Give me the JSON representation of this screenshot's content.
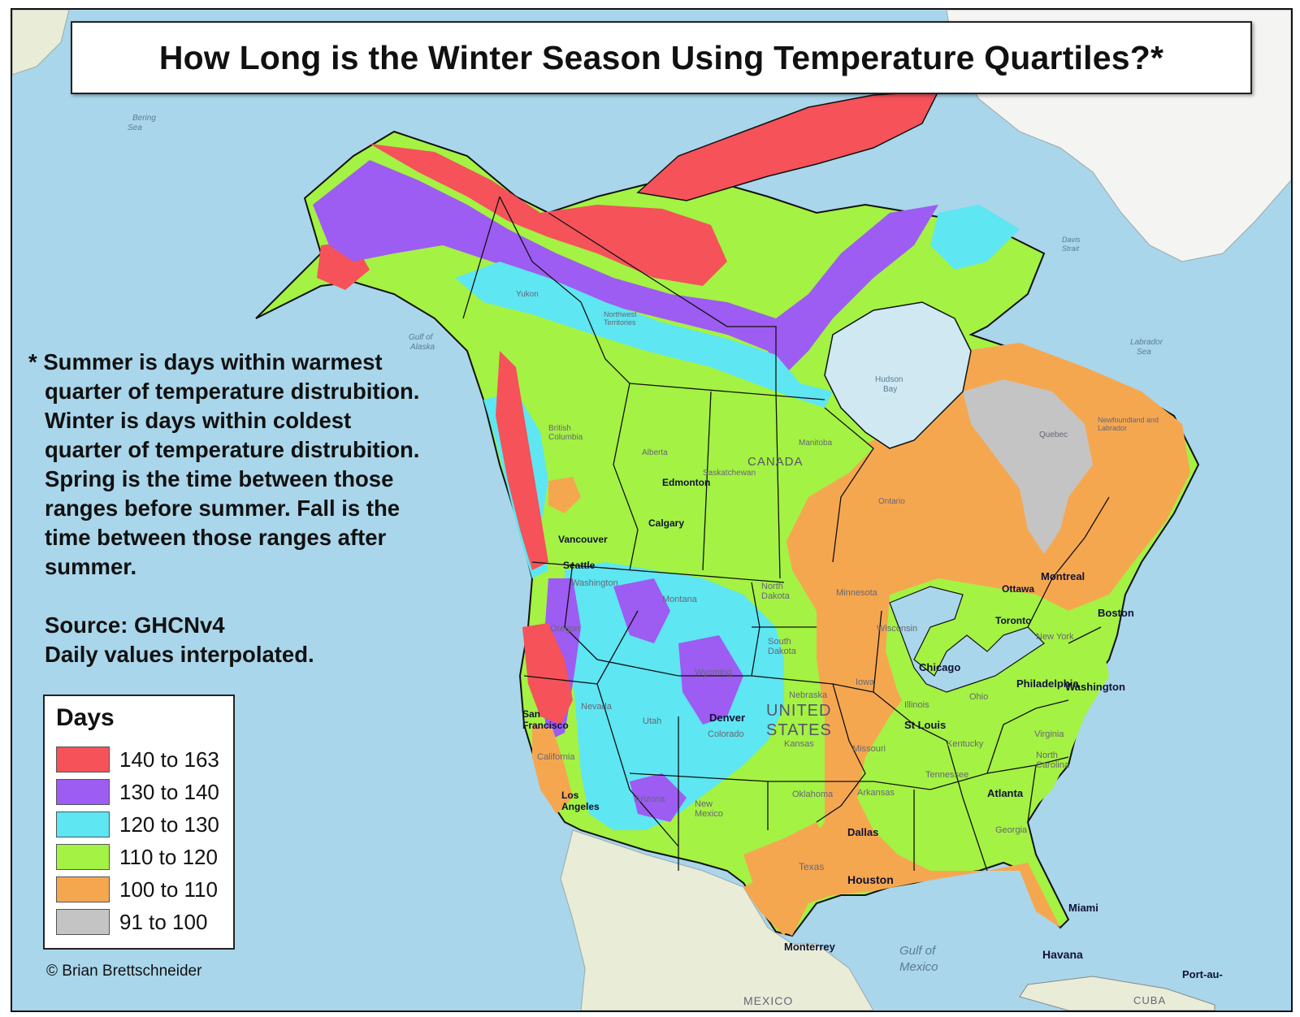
{
  "title": "How Long is the Winter Season Using Temperature Quartiles?*",
  "notes": [
    "* Summer is days within warmest",
    "quarter of temperature distrubition.",
    "Winter is days within coldest",
    "quarter of temperature distrubition.",
    "Spring is the time between those",
    "ranges before summer. Fall is the",
    "time between those ranges after",
    "summer."
  ],
  "source": [
    "Source: GHCNv4",
    "Daily values interpolated."
  ],
  "legend": {
    "title": "Days",
    "items": [
      {
        "label": "140 to 163",
        "color": "#f5525a"
      },
      {
        "label": "130 to 140",
        "color": "#9d5cf2"
      },
      {
        "label": "120 to 130",
        "color": "#5ee6f2"
      },
      {
        "label": "110 to 120",
        "color": "#a4f243"
      },
      {
        "label": "100 to 110",
        "color": "#f5a750"
      },
      {
        "label": "91 to 100",
        "color": "#c4c4c4"
      }
    ]
  },
  "credit": "© Brian Brettschneider",
  "colors": {
    "ocean": "#a9d6ea",
    "land_outside": "#e9ecd7",
    "greenland": "#f4f4f2",
    "hudson_bay": "#cfe8f2"
  },
  "places": {
    "canada": "CANADA",
    "united": "UNITED",
    "states": "STATES",
    "edmonton": "Edmonton",
    "calgary": "Calgary",
    "vancouver": "Vancouver",
    "seattle": "Seattle",
    "denver": "Denver",
    "chicago": "Chicago",
    "st_louis": "St Louis",
    "dallas": "Dallas",
    "houston": "Houston",
    "atlanta": "Atlanta",
    "philadelphia": "Philadelphia",
    "boston": "Boston",
    "montreal": "Montreal",
    "toronto": "Toronto",
    "ottawa": "Ottawa",
    "los_angeles": "Los Angeles",
    "san_francisco": "San Francisco",
    "miami": "Miami",
    "havana": "Havana",
    "monterrey": "Monterrey",
    "washington": "Washington",
    "mexico": "MEXICO",
    "cuba": "CUBA",
    "port_au": "Port-au-",
    "gulf_of": "Gulf of",
    "mexico_gulf": "Mexico",
    "hudson": "Hudson",
    "bay": "Bay",
    "labrador": "Labrador",
    "sea": "Sea",
    "gulf_alaska_1": "Gulf of",
    "gulf_alaska_2": "Alaska",
    "bering_1": "Bering",
    "bering_2": "Sea",
    "davis_1": "Davis",
    "davis_2": "Strait",
    "british_columbia": "British Columbia",
    "alberta": "Alberta",
    "saskatchewan": "Saskatchewan",
    "manitoba": "Manitoba",
    "ontario": "Ontario",
    "quebec": "Quebec",
    "newfoundland": "Newfoundland and Labrador",
    "yukon": "Yukon",
    "northwest": "Northwest Territories",
    "north_dakota": "North Dakota",
    "south_dakota": "South Dakota",
    "nebraska": "Nebraska",
    "kansas": "Kansas",
    "oklahoma": "Oklahoma",
    "texas": "Texas",
    "minnesota": "Minnesota",
    "iowa": "Iowa",
    "missouri": "Missouri",
    "illinois": "Illinois",
    "wisconsin": "Wisconsin",
    "ohio": "Ohio",
    "tennessee": "Tennessee",
    "arkansas": "Arkansas",
    "kentucky": "Kentucky",
    "virginia": "Virginia",
    "north_carolina": "North Carolina",
    "georgia": "Georgia",
    "new_york": "New York",
    "montana": "Montana",
    "wyoming": "Wyoming",
    "colorado": "Colorado",
    "new_mexico": "New Mexico",
    "arizona": "Arizona",
    "utah": "Utah",
    "nevada": "Nevada",
    "oregon": "Oregon",
    "california": "California",
    "washington_state": "Washington"
  }
}
